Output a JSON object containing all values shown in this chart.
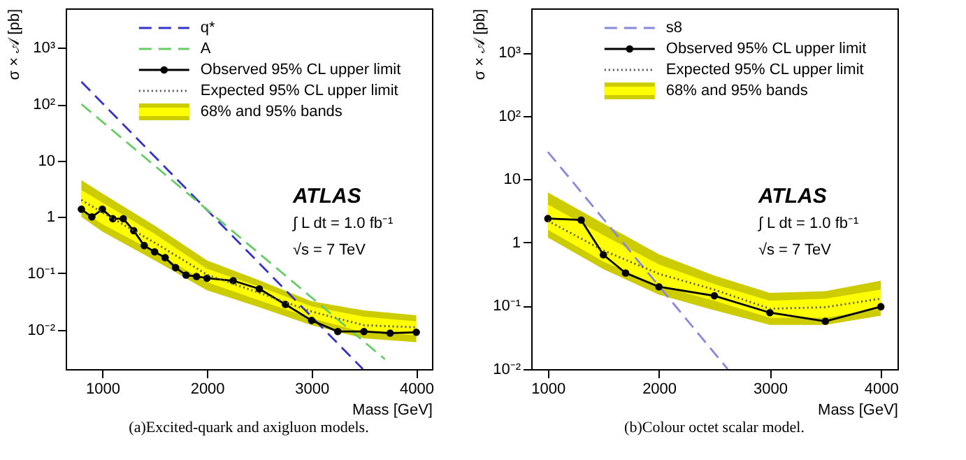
{
  "chart_data": [
    {
      "type": "line",
      "title": "(a)Excited-quark and axigluon models.",
      "xlabel": "Mass [GeV]",
      "ylabel": "σ × 𝒜 [pb]",
      "log": "y",
      "legend": "top right",
      "xlim": [
        650,
        4150
      ],
      "xticks": [
        1000,
        2000,
        3000,
        4000
      ],
      "ylim": [
        0.002,
        5000
      ],
      "yticks": [
        {
          "value": 0.01,
          "label": "10⁻²"
        },
        {
          "value": 0.1,
          "label": "10⁻¹"
        },
        1,
        10,
        {
          "value": 100,
          "label": "10²"
        },
        {
          "value": 1000,
          "label": "10³"
        }
      ],
      "annotations": [
        "ATLAS",
        "∫ L dt = 1.0 fb⁻¹",
        "√s = 7 TeV"
      ],
      "series": [
        {
          "name": "68% and 95% bands",
          "type": "area",
          "color": "#cccc00",
          "x": [
            800,
            1000,
            1500,
            2000,
            2500,
            3000,
            3500,
            4000
          ],
          "values": [
            null,
            null,
            null,
            null,
            null,
            null,
            null,
            null
          ],
          "lower": [
            1.0,
            0.55,
            0.17,
            0.05,
            0.025,
            0.012,
            0.007,
            0.006
          ],
          "upper": [
            4.5,
            2.6,
            0.7,
            0.17,
            0.075,
            0.032,
            0.022,
            0.018
          ]
        },
        {
          "type": "area",
          "color": "#ffff00",
          "x": [
            800,
            1000,
            1500,
            2000,
            2500,
            3000,
            3500,
            4000
          ],
          "values": [
            null,
            null,
            null,
            null,
            null,
            null,
            null,
            null
          ],
          "lower": [
            1.3,
            0.75,
            0.24,
            0.07,
            0.033,
            0.016,
            0.009,
            0.008
          ],
          "upper": [
            3.0,
            1.8,
            0.5,
            0.12,
            0.058,
            0.026,
            0.017,
            0.014
          ]
        },
        {
          "name": "q*",
          "type": "line",
          "color": "#3333cc",
          "line_style": "dashed",
          "x": [
            800,
            2000,
            3490
          ],
          "values": [
            250,
            1.33,
            0.002
          ]
        },
        {
          "name": "A",
          "type": "line",
          "color": "#66cc66",
          "line_style": "dashed",
          "x": [
            800,
            2000,
            3700
          ],
          "values": [
            100,
            1.35,
            0.003
          ]
        },
        {
          "name": "Observed 95% CL upper limit",
          "type": "line",
          "color": "#000000",
          "line_style": "solid",
          "marker": "circle",
          "x": [
            800,
            900,
            1000,
            1100,
            1200,
            1300,
            1400,
            1500,
            1600,
            1700,
            1800,
            1900,
            2000,
            2250,
            2500,
            2750,
            3000,
            3250,
            3500,
            3750,
            4000
          ],
          "values": [
            1.37,
            1.0,
            1.37,
            0.93,
            0.93,
            0.57,
            0.31,
            0.24,
            0.19,
            0.126,
            0.093,
            0.088,
            0.082,
            0.074,
            0.053,
            0.028,
            0.0146,
            0.0093,
            0.0093,
            0.0087,
            0.009
          ]
        },
        {
          "name": "Expected 95% CL upper limit",
          "type": "line",
          "color": "#555555",
          "line_style": "dotted",
          "x": [
            800,
            1000,
            1500,
            2000,
            2500,
            3000,
            3500,
            4000
          ],
          "values": [
            2.0,
            1.2,
            0.35,
            0.095,
            0.045,
            0.021,
            0.012,
            0.011
          ]
        }
      ]
    },
    {
      "type": "line",
      "title": "(b)Colour octet scalar model.",
      "xlabel": "Mass [GeV]",
      "ylabel": "σ × 𝒜 [pb]",
      "log": "y",
      "legend": "top right",
      "xlim": [
        850,
        4150
      ],
      "xticks": [
        1000,
        2000,
        3000,
        4000
      ],
      "ylim": [
        0.01,
        5000
      ],
      "yticks": [
        {
          "value": 0.01,
          "label": "10⁻²"
        },
        {
          "value": 0.1,
          "label": "10⁻¹"
        },
        1,
        10,
        {
          "value": 100,
          "label": "10²"
        },
        {
          "value": 1000,
          "label": "10³"
        }
      ],
      "annotations": [
        "ATLAS",
        "∫ L dt = 1.0 fb⁻¹",
        "√s = 7 TeV"
      ],
      "series": [
        {
          "name": "68% and 95% bands",
          "type": "area",
          "color": "#cccc00",
          "x": [
            1000,
            1500,
            2000,
            2500,
            3000,
            3500,
            4000
          ],
          "values": [
            null,
            null,
            null,
            null,
            null,
            null,
            null
          ],
          "lower": [
            1.2,
            0.38,
            0.15,
            0.085,
            0.05,
            0.05,
            0.07
          ],
          "upper": [
            6.2,
            2.0,
            0.65,
            0.3,
            0.16,
            0.17,
            0.25
          ]
        },
        {
          "type": "area",
          "color": "#ffff00",
          "x": [
            1000,
            1500,
            2000,
            2500,
            3000,
            3500,
            4000
          ],
          "values": [
            null,
            null,
            null,
            null,
            null,
            null,
            null
          ],
          "lower": [
            1.6,
            0.5,
            0.21,
            0.12,
            0.065,
            0.065,
            0.09
          ],
          "upper": [
            4.0,
            1.3,
            0.45,
            0.22,
            0.12,
            0.13,
            0.18
          ]
        },
        {
          "name": "s8",
          "type": "line",
          "color": "#8888dd",
          "line_style": "dashed",
          "x": [
            1000,
            2620
          ],
          "values": [
            27,
            0.01
          ]
        },
        {
          "name": "Observed 95% CL upper limit",
          "type": "line",
          "color": "#000000",
          "line_style": "solid",
          "marker": "circle",
          "x": [
            1000,
            1300,
            1500,
            1700,
            2000,
            2500,
            3000,
            3500,
            4000
          ],
          "values": [
            2.39,
            2.27,
            0.64,
            0.33,
            0.2,
            0.144,
            0.078,
            0.057,
            0.097
          ]
        },
        {
          "name": "Expected 95% CL upper limit",
          "type": "line",
          "color": "#555555",
          "line_style": "dotted",
          "x": [
            1000,
            1500,
            2000,
            2500,
            3000,
            3500,
            4000
          ],
          "values": [
            2.2,
            0.75,
            0.32,
            0.18,
            0.09,
            0.095,
            0.13
          ]
        }
      ]
    }
  ]
}
